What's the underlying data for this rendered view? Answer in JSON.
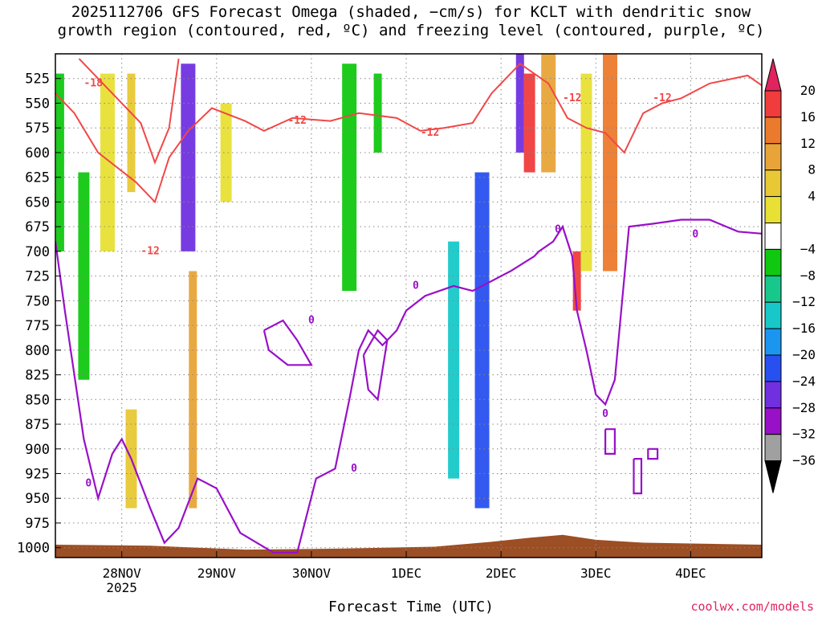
{
  "title": {
    "line1": "2025112706 GFS Forecast Omega (shaded, −cm/s) for KCLT with dendritic snow",
    "line2": "growth region (contoured, red, ºC) and freezing level (contoured, purple, ºC)"
  },
  "watermark": "coolwx.com/models",
  "chart_data": {
    "type": "heatmap",
    "xlabel": "Forecast Time (UTC)",
    "x_ticks": [
      {
        "t": 0.7,
        "label": "28NOV",
        "sublabel": "2025"
      },
      {
        "t": 1.7,
        "label": "29NOV"
      },
      {
        "t": 2.7,
        "label": "30NOV"
      },
      {
        "t": 3.7,
        "label": "1DEC"
      },
      {
        "t": 4.7,
        "label": "2DEC"
      },
      {
        "t": 5.7,
        "label": "3DEC"
      },
      {
        "t": 6.7,
        "label": "4DEC"
      }
    ],
    "xlim_days": [
      0,
      7.45
    ],
    "y_ticks": [
      525,
      550,
      575,
      600,
      625,
      650,
      675,
      700,
      725,
      750,
      775,
      800,
      825,
      850,
      875,
      900,
      925,
      950,
      975,
      1000
    ],
    "ylim_hpa": [
      500,
      1010
    ],
    "colorbar": {
      "labels": [
        "20",
        "16",
        "12",
        "8",
        "4",
        "−4",
        "−8",
        "−12",
        "−16",
        "−20",
        "−24",
        "−28",
        "−32",
        "−36"
      ],
      "bins": [
        {
          "color": "#e0245e"
        },
        {
          "color": "#f03c3c"
        },
        {
          "color": "#ec7a2c"
        },
        {
          "color": "#e8a438"
        },
        {
          "color": "#e8c834"
        },
        {
          "color": "#e8e034"
        },
        {
          "color": "#ffffff"
        },
        {
          "color": "#10c810"
        },
        {
          "color": "#18c88a"
        },
        {
          "color": "#18c8c8"
        },
        {
          "color": "#1a96f0"
        },
        {
          "color": "#2850f0"
        },
        {
          "color": "#7030e0"
        },
        {
          "color": "#9810c8"
        },
        {
          "color": "#a0a0a0"
        },
        {
          "color": "#000000"
        }
      ]
    },
    "contour_labels": {
      "red": [
        "-18",
        "-12",
        "-12",
        "-12",
        "-12",
        "-12"
      ],
      "purple": [
        "0",
        "0",
        "0",
        "0",
        "0",
        "0",
        "0"
      ]
    },
    "omega_shading": [
      {
        "t": 0.05,
        "p0": 520,
        "p1": 700,
        "value": -6
      },
      {
        "t": 0.3,
        "p0": 620,
        "p1": 830,
        "value": -6
      },
      {
        "t": 0.55,
        "p0": 520,
        "p1": 700,
        "value": 5
      },
      {
        "t": 0.8,
        "p0": 520,
        "p1": 640,
        "value": 6
      },
      {
        "t": 0.8,
        "p0": 860,
        "p1": 960,
        "value": 6
      },
      {
        "t": 1.4,
        "p0": 510,
        "p1": 700,
        "value": -26
      },
      {
        "t": 1.45,
        "p0": 720,
        "p1": 960,
        "value": 10
      },
      {
        "t": 1.8,
        "p0": 550,
        "p1": 650,
        "value": 5
      },
      {
        "t": 3.1,
        "p0": 510,
        "p1": 740,
        "value": -6
      },
      {
        "t": 3.4,
        "p0": 520,
        "p1": 600,
        "value": -6
      },
      {
        "t": 4.2,
        "p0": 690,
        "p1": 930,
        "value": -14
      },
      {
        "t": 4.5,
        "p0": 620,
        "p1": 960,
        "value": -22
      },
      {
        "t": 4.9,
        "p0": 500,
        "p1": 600,
        "value": -26
      },
      {
        "t": 5.0,
        "p0": 520,
        "p1": 620,
        "value": 16
      },
      {
        "t": 5.2,
        "p0": 500,
        "p1": 620,
        "value": 10
      },
      {
        "t": 5.5,
        "p0": 700,
        "p1": 760,
        "value": 18
      },
      {
        "t": 5.6,
        "p0": 520,
        "p1": 720,
        "value": 5
      },
      {
        "t": 5.85,
        "p0": 500,
        "p1": 720,
        "value": 14
      }
    ],
    "snow_growth_contour_m12": [
      [
        0.0,
        540
      ],
      [
        0.2,
        560
      ],
      [
        0.45,
        600
      ],
      [
        0.85,
        630
      ],
      [
        1.05,
        650
      ],
      [
        1.2,
        605
      ],
      [
        1.4,
        578
      ],
      [
        1.65,
        555
      ],
      [
        2.0,
        568
      ],
      [
        2.2,
        578
      ],
      [
        2.5,
        565
      ],
      [
        2.9,
        568
      ],
      [
        3.2,
        560
      ],
      [
        3.6,
        565
      ],
      [
        3.85,
        578
      ],
      [
        4.1,
        575
      ],
      [
        4.4,
        570
      ],
      [
        4.6,
        540
      ],
      [
        4.9,
        510
      ],
      [
        5.2,
        530
      ],
      [
        5.4,
        565
      ],
      [
        5.6,
        575
      ],
      [
        5.8,
        580
      ],
      [
        6.0,
        600
      ],
      [
        6.2,
        560
      ],
      [
        6.4,
        550
      ],
      [
        6.6,
        545
      ],
      [
        6.9,
        530
      ],
      [
        7.3,
        522
      ],
      [
        7.45,
        532
      ]
    ],
    "snow_growth_contour_m18": [
      [
        0.25,
        505
      ],
      [
        0.6,
        540
      ],
      [
        0.9,
        570
      ],
      [
        1.05,
        610
      ],
      [
        1.2,
        575
      ],
      [
        1.3,
        505
      ]
    ],
    "freezing_level_contour": [
      [
        0.0,
        690
      ],
      [
        0.1,
        760
      ],
      [
        0.3,
        890
      ],
      [
        0.45,
        950
      ],
      [
        0.6,
        905
      ],
      [
        0.7,
        890
      ],
      [
        0.8,
        910
      ],
      [
        1.0,
        960
      ],
      [
        1.15,
        995
      ],
      [
        1.3,
        980
      ],
      [
        1.5,
        930
      ],
      [
        1.7,
        940
      ],
      [
        1.95,
        985
      ],
      [
        2.3,
        1005
      ],
      [
        2.55,
        1005
      ],
      [
        2.75,
        930
      ],
      [
        2.95,
        920
      ],
      [
        3.1,
        850
      ],
      [
        3.2,
        800
      ],
      [
        3.3,
        780
      ],
      [
        3.45,
        795
      ],
      [
        3.6,
        780
      ],
      [
        3.7,
        760
      ],
      [
        3.9,
        745
      ],
      [
        4.2,
        735
      ],
      [
        4.4,
        740
      ],
      [
        4.6,
        730
      ],
      [
        4.8,
        720
      ],
      [
        5.05,
        705
      ],
      [
        5.1,
        700
      ],
      [
        5.25,
        690
      ],
      [
        5.35,
        675
      ],
      [
        5.45,
        705
      ],
      [
        5.5,
        760
      ],
      [
        5.6,
        800
      ],
      [
        5.7,
        845
      ],
      [
        5.8,
        855
      ],
      [
        5.9,
        830
      ],
      [
        6.05,
        675
      ],
      [
        6.3,
        672
      ],
      [
        6.6,
        668
      ],
      [
        6.9,
        668
      ],
      [
        7.2,
        680
      ],
      [
        7.45,
        682
      ]
    ],
    "freezing_level_closed": [
      [
        [
          2.2,
          780
        ],
        [
          2.4,
          770
        ],
        [
          2.55,
          790
        ],
        [
          2.7,
          815
        ],
        [
          2.45,
          815
        ],
        [
          2.25,
          800
        ],
        [
          2.2,
          780
        ]
      ],
      [
        [
          3.25,
          805
        ],
        [
          3.4,
          780
        ],
        [
          3.5,
          790
        ],
        [
          3.4,
          850
        ],
        [
          3.3,
          840
        ],
        [
          3.25,
          805
        ]
      ],
      [
        [
          5.8,
          880
        ],
        [
          5.9,
          880
        ],
        [
          5.9,
          905
        ],
        [
          5.8,
          905
        ],
        [
          5.8,
          880
        ]
      ],
      [
        [
          6.1,
          910
        ],
        [
          6.18,
          910
        ],
        [
          6.18,
          945
        ],
        [
          6.1,
          945
        ],
        [
          6.1,
          910
        ]
      ],
      [
        [
          6.25,
          900
        ],
        [
          6.35,
          900
        ],
        [
          6.35,
          910
        ],
        [
          6.25,
          910
        ],
        [
          6.25,
          900
        ]
      ]
    ],
    "terrain_color": "#9c4e24",
    "terrain_top_hpa": [
      [
        0.0,
        997
      ],
      [
        1.0,
        998
      ],
      [
        2.0,
        1002
      ],
      [
        3.0,
        1001
      ],
      [
        4.0,
        999
      ],
      [
        4.6,
        994
      ],
      [
        5.0,
        990
      ],
      [
        5.35,
        987
      ],
      [
        5.7,
        992
      ],
      [
        6.2,
        995
      ],
      [
        7.45,
        997
      ]
    ]
  }
}
